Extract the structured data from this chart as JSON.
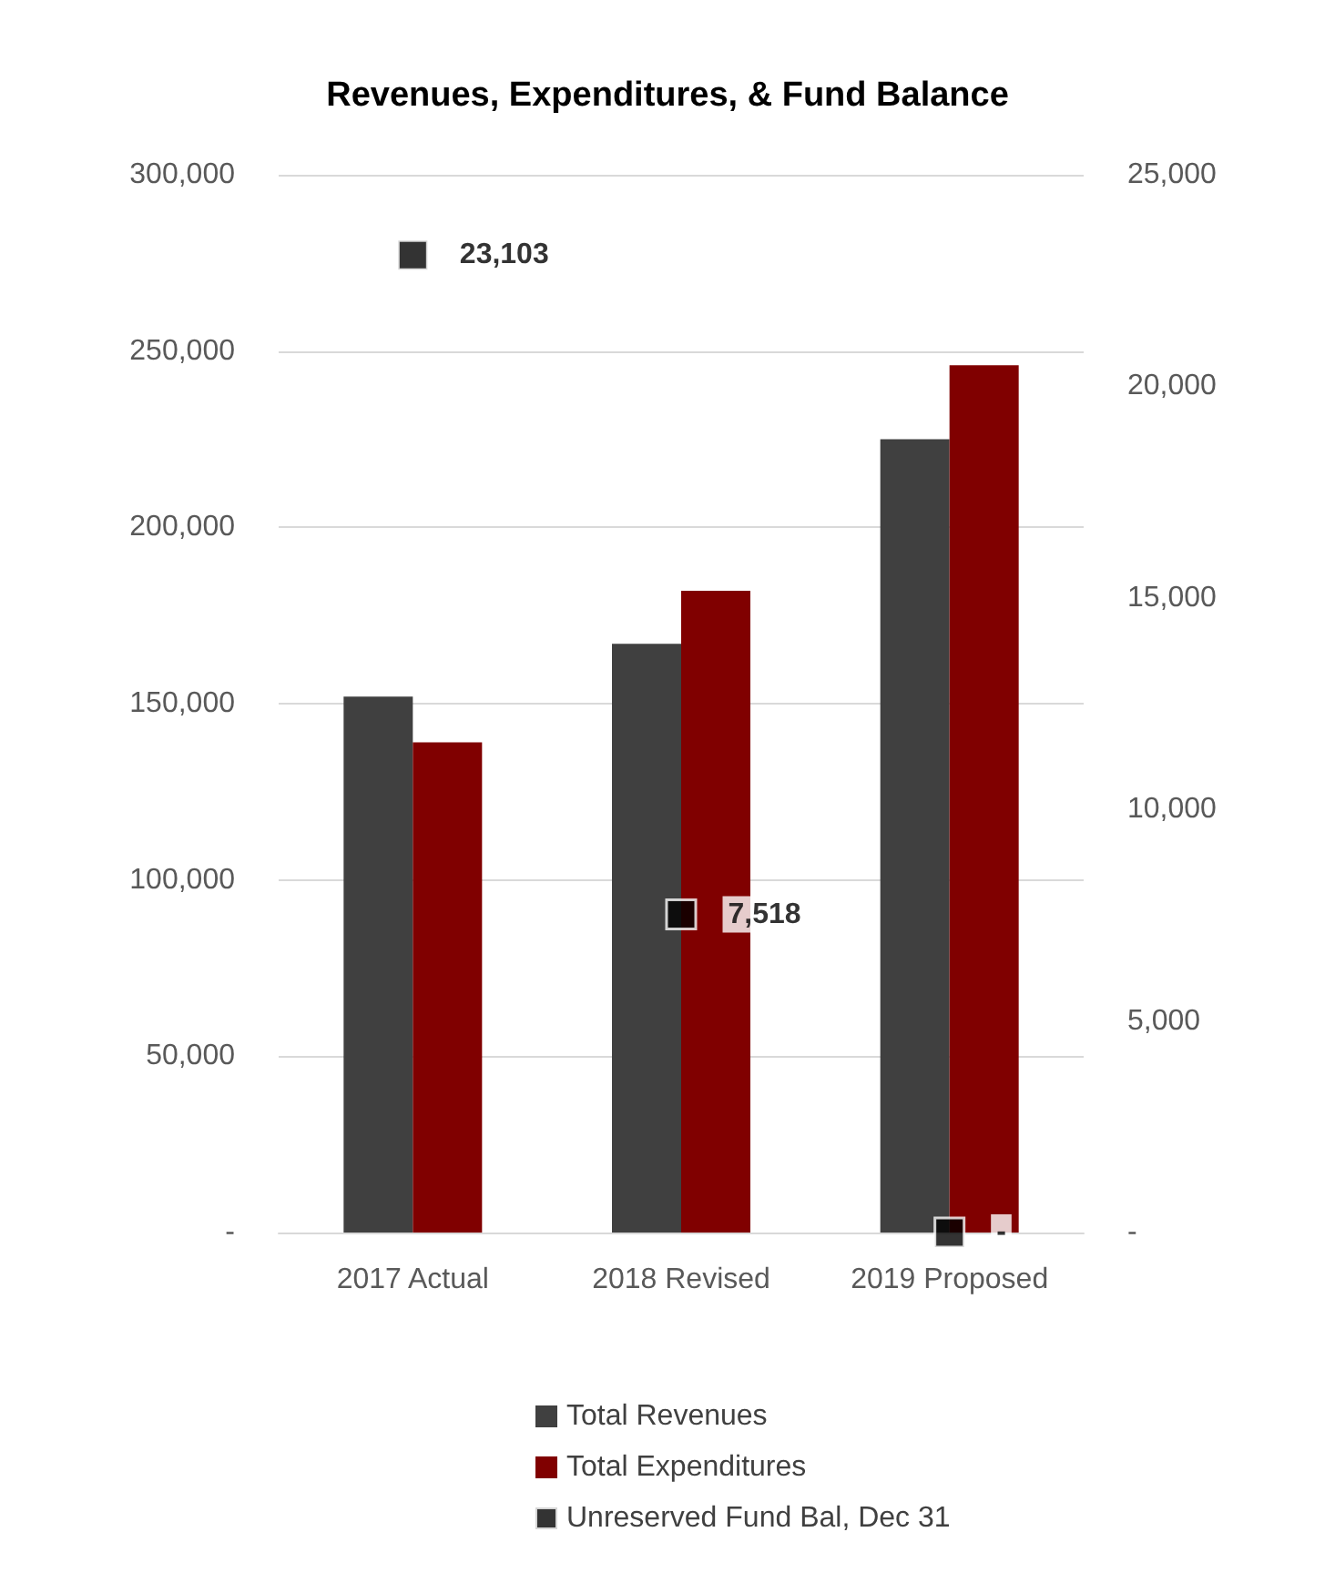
{
  "chart_data": {
    "type": "bar",
    "title": "Revenues, Expenditures, & Fund Balance",
    "categories": [
      "2017 Actual",
      "2018 Revised",
      "2019 Proposed"
    ],
    "series": [
      {
        "name": "Total Revenues",
        "color": "#404040",
        "values": [
          152000,
          167000,
          225000
        ]
      },
      {
        "name": "Total Expenditures",
        "color": "#800000",
        "values": [
          139000,
          182000,
          246000
        ]
      },
      {
        "name": "Unreserved Fund Bal, Dec 31",
        "type": "scatter",
        "axis": "y2",
        "color": "#000000",
        "values": [
          23103,
          7518,
          0
        ],
        "value_labels": [
          "23,103",
          "7,518",
          "-"
        ]
      }
    ],
    "ylim": [
      0,
      300000
    ],
    "yticks": [
      {
        "value": 0,
        "label": "-"
      },
      {
        "value": 50000,
        "label": "50,000"
      },
      {
        "value": 100000,
        "label": "100,000"
      },
      {
        "value": 150000,
        "label": "150,000"
      },
      {
        "value": 200000,
        "label": "200,000"
      },
      {
        "value": 250000,
        "label": "250,000"
      },
      {
        "value": 300000,
        "label": "300,000"
      }
    ],
    "y2lim": [
      0,
      25000
    ],
    "y2ticks": [
      {
        "value": 0,
        "label": "-"
      },
      {
        "value": 5000,
        "label": "5,000"
      },
      {
        "value": 10000,
        "label": "10,000"
      },
      {
        "value": 15000,
        "label": "15,000"
      },
      {
        "value": 20000,
        "label": "20,000"
      },
      {
        "value": 25000,
        "label": "25,000"
      }
    ],
    "grid": "y",
    "legend": "bottom",
    "marker": "square"
  }
}
